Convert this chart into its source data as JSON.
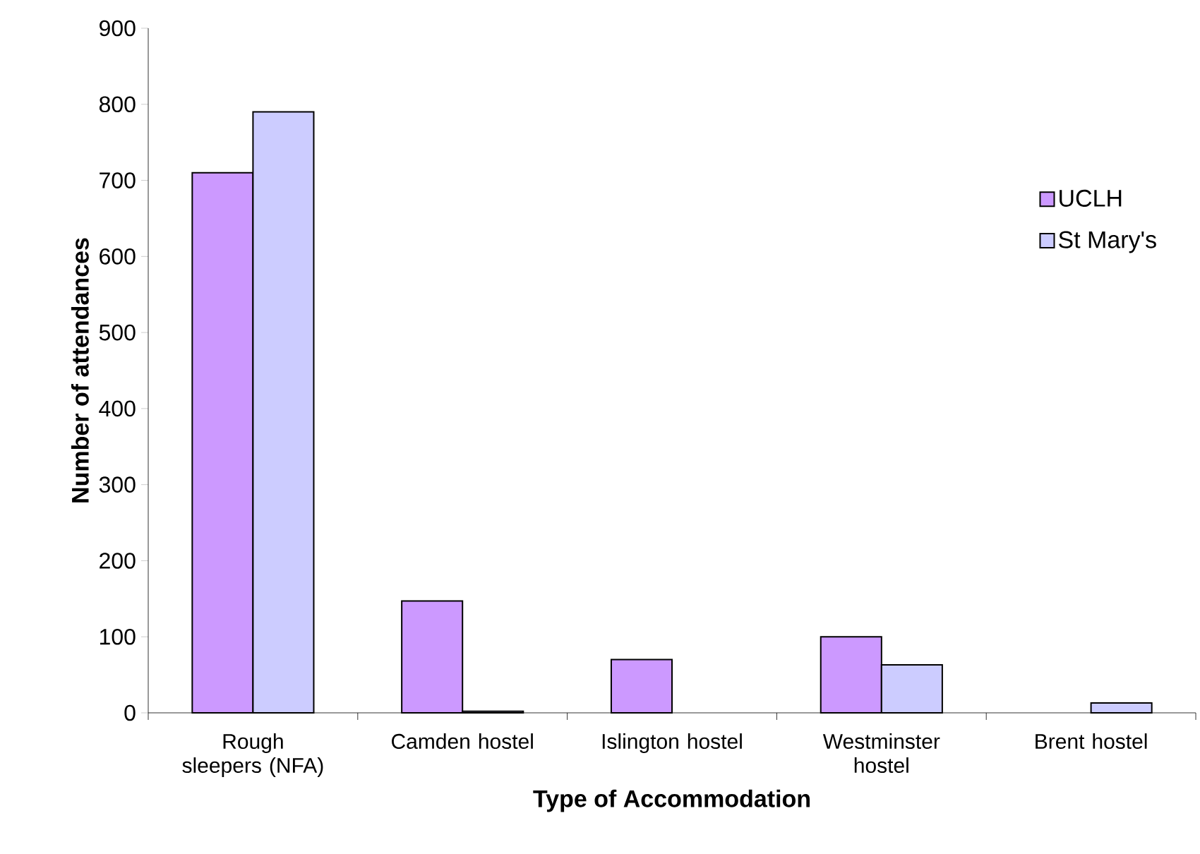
{
  "chart_data": {
    "type": "bar",
    "xlabel": "Type of Accommodation",
    "ylabel": "Number of attendances",
    "categories": [
      "Rough sleepers (NFA)",
      "Camden hostel",
      "Islington hostel",
      "Westminster hostel",
      "Brent hostel"
    ],
    "series": [
      {
        "name": "UCLH",
        "color": "#cc99ff",
        "values": [
          710,
          147,
          70,
          100,
          null
        ]
      },
      {
        "name": "St Mary's",
        "color": "#ccccff",
        "values": [
          790,
          2,
          null,
          63,
          13
        ]
      }
    ],
    "ylim": [
      0,
      900
    ],
    "yticks": [
      0,
      100,
      200,
      300,
      400,
      500,
      600,
      700,
      800,
      900
    ],
    "grid": false,
    "legend": "right"
  }
}
